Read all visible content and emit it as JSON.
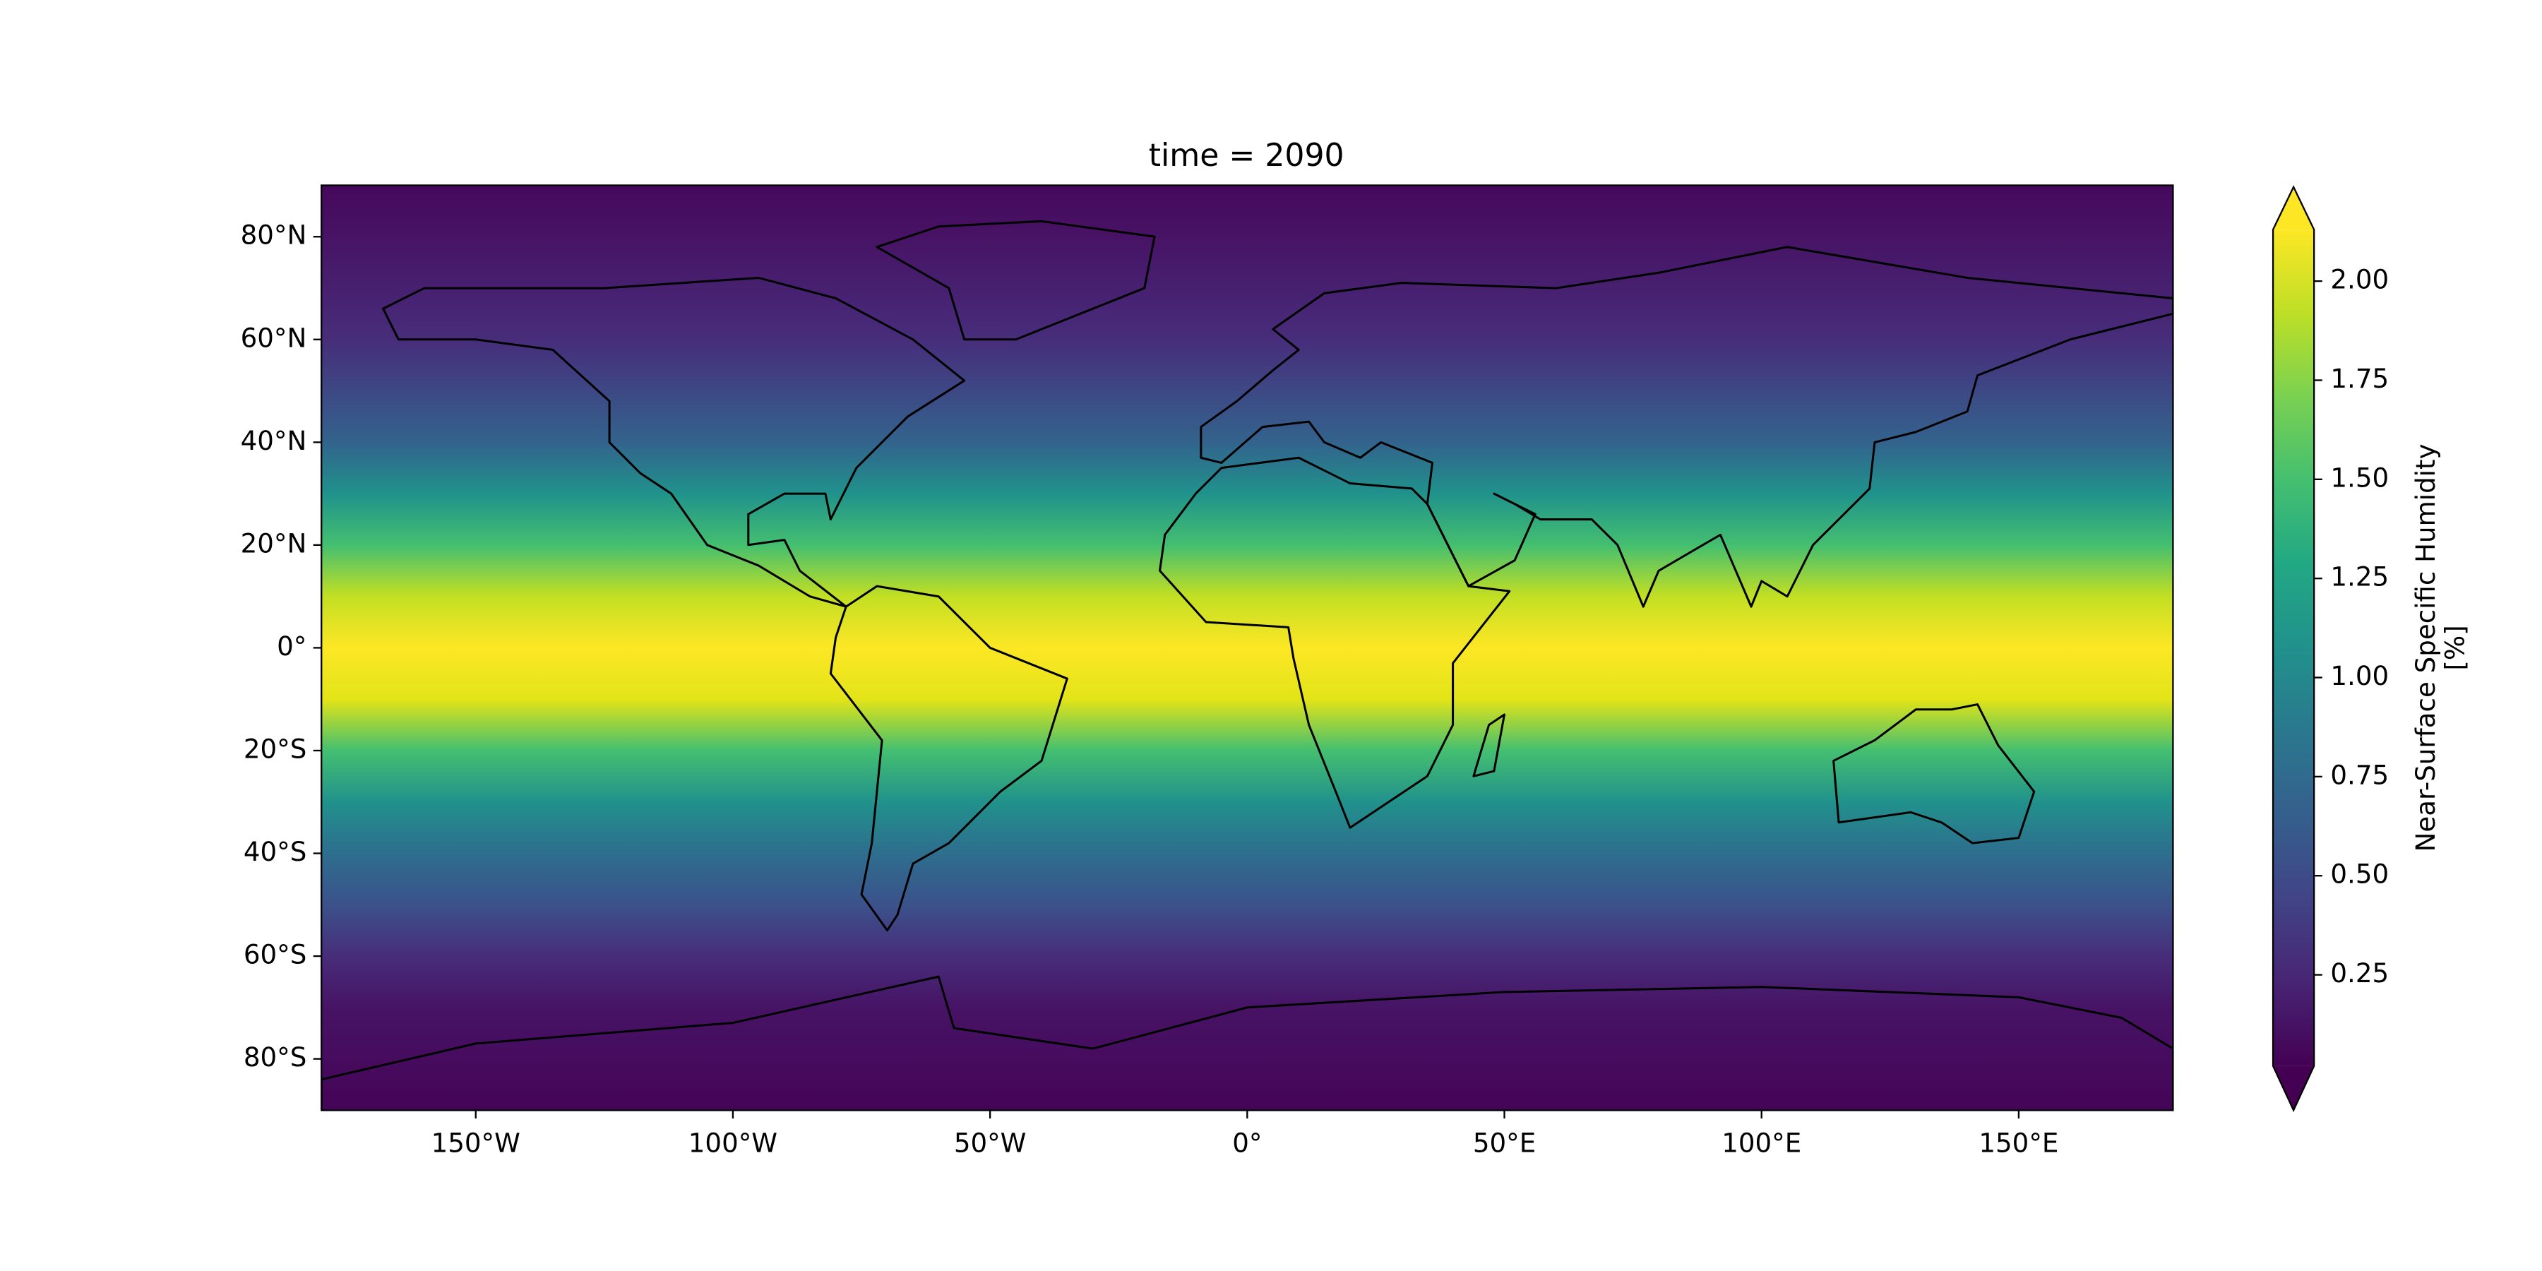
{
  "chart_data": {
    "type": "map",
    "title": "time = 2090",
    "xlim": [
      -180,
      180
    ],
    "ylim": [
      -90,
      90
    ],
    "xticks": [
      {
        "value": -150,
        "label": "150°W"
      },
      {
        "value": -100,
        "label": "100°W"
      },
      {
        "value": -50,
        "label": "50°W"
      },
      {
        "value": 0,
        "label": "0°"
      },
      {
        "value": 50,
        "label": "50°E"
      },
      {
        "value": 100,
        "label": "100°E"
      },
      {
        "value": 150,
        "label": "150°E"
      }
    ],
    "yticks": [
      {
        "value": 80,
        "label": "80°N"
      },
      {
        "value": 60,
        "label": "60°N"
      },
      {
        "value": 40,
        "label": "40°N"
      },
      {
        "value": 20,
        "label": "20°N"
      },
      {
        "value": 0,
        "label": "0°"
      },
      {
        "value": -20,
        "label": "20°S"
      },
      {
        "value": -40,
        "label": "40°S"
      },
      {
        "value": -60,
        "label": "60°S"
      },
      {
        "value": -80,
        "label": "80°S"
      }
    ],
    "colorbar": {
      "label": [
        "Near-Surface Specific Humidity",
        "[%]"
      ],
      "lim": [
        0.02,
        2.13
      ],
      "extend": "both",
      "colormap": "viridis",
      "ticks": [
        {
          "value": 0.25,
          "label": "0.25"
        },
        {
          "value": 0.5,
          "label": "0.50"
        },
        {
          "value": 0.75,
          "label": "0.75"
        },
        {
          "value": 1,
          "label": "1.00"
        },
        {
          "value": 1.25,
          "label": "1.25"
        },
        {
          "value": 1.5,
          "label": "1.50"
        },
        {
          "value": 1.75,
          "label": "1.75"
        },
        {
          "value": 2,
          "label": "2.00"
        }
      ]
    }
  }
}
